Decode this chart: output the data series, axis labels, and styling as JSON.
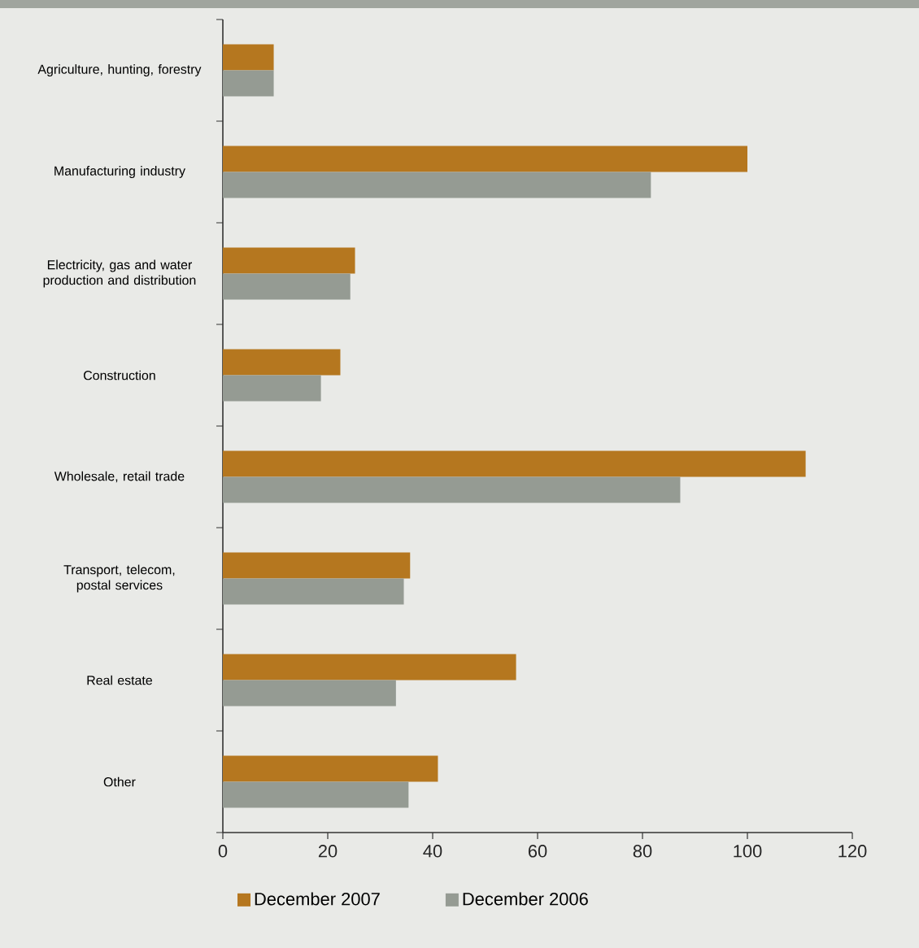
{
  "chart_data": {
    "type": "bar",
    "orientation": "horizontal",
    "categories": [
      "Agriculture, hunting, forestry",
      "Manufacturing industry",
      "Electricity, gas and water production and distribution",
      "Construction",
      "Wholesale, retail trade",
      "Transport, telecom, postal services",
      "Real estate",
      "Other"
    ],
    "series": [
      {
        "name": "December 2007",
        "color": "#b5771f",
        "values": [
          9.7,
          100,
          25.2,
          22.4,
          111.1,
          35.7,
          55.9,
          41.0
        ]
      },
      {
        "name": "December 2006",
        "color": "#959b93",
        "values": [
          9.7,
          81.6,
          24.3,
          18.7,
          87.2,
          34.5,
          33.0,
          35.4
        ]
      }
    ],
    "xlim": [
      0,
      120
    ],
    "xticks": [
      0,
      20,
      40,
      60,
      80,
      100,
      120
    ],
    "grid": false,
    "legend": "bottom"
  }
}
